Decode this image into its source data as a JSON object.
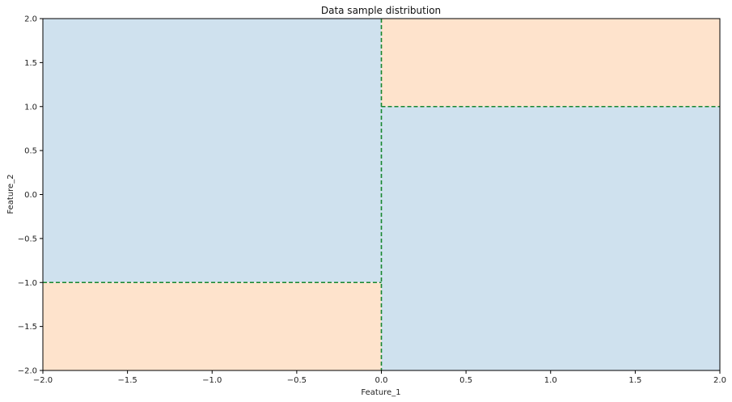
{
  "chart_data": {
    "type": "heatmap",
    "title": "Data sample distribution",
    "xlabel": "Feature_1",
    "ylabel": "Feature_2",
    "xlim": [
      -2.0,
      2.0
    ],
    "ylim": [
      -2.0,
      2.0
    ],
    "x_ticks": [
      -2.0,
      -1.5,
      -1.0,
      -0.5,
      0.0,
      0.5,
      1.0,
      1.5,
      2.0
    ],
    "y_ticks": [
      -2.0,
      -1.5,
      -1.0,
      -0.5,
      0.0,
      0.5,
      1.0,
      1.5,
      2.0
    ],
    "x_tick_labels": [
      "−2.0",
      "−1.5",
      "−1.0",
      "−0.5",
      "0.0",
      "0.5",
      "1.0",
      "1.5",
      "2.0"
    ],
    "y_tick_labels": [
      "−2.0",
      "−1.5",
      "−1.0",
      "−0.5",
      "0.0",
      "0.5",
      "1.0",
      "1.5",
      "2.0"
    ],
    "grid": false,
    "regions": [
      {
        "class": "blue",
        "x": [
          -2.0,
          0.0
        ],
        "y": [
          -1.0,
          2.0
        ]
      },
      {
        "class": "orange",
        "x": [
          -2.0,
          0.0
        ],
        "y": [
          -2.0,
          -1.0
        ]
      },
      {
        "class": "orange",
        "x": [
          0.0,
          2.0
        ],
        "y": [
          1.0,
          2.0
        ]
      },
      {
        "class": "blue",
        "x": [
          0.0,
          2.0
        ],
        "y": [
          -2.0,
          1.0
        ]
      }
    ],
    "boundaries": [
      {
        "orientation": "vertical",
        "x": 0.0,
        "y": [
          -2.0,
          2.0
        ]
      },
      {
        "orientation": "horizontal",
        "y": -1.0,
        "x": [
          -2.0,
          0.0
        ]
      },
      {
        "orientation": "horizontal",
        "y": 1.0,
        "x": [
          0.0,
          2.0
        ]
      }
    ],
    "colors": {
      "blue": "#cfe1ee",
      "orange": "#fee3cc",
      "boundary": "#17862e"
    }
  }
}
